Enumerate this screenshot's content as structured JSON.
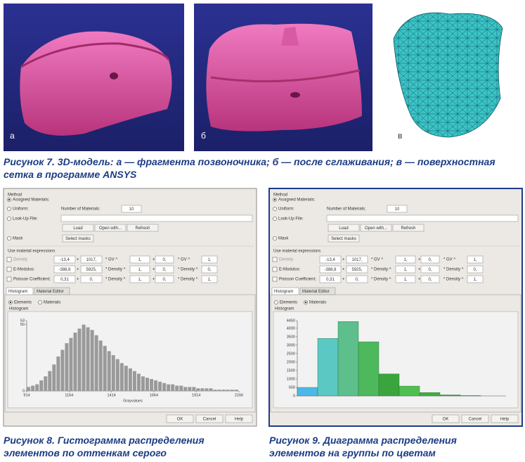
{
  "images": [
    {
      "label": "а"
    },
    {
      "label": "б"
    },
    {
      "label": "в"
    }
  ],
  "captions": [
    "Рисунок 7. 3D-модель: а — фрагмента позвоночника; б — после сглаживания; в — поверхностная сетка в программе ANSYS",
    "Рисунок 8. Гистограмма распределения элементов по оттенкам серого",
    "Рисунок 9. Диаграмма распределения элементов на группы по цветам"
  ],
  "dialogs": [
    {
      "method": "Method",
      "method_selected": 0,
      "options": [
        "Assigned Materials:",
        "Uniform:",
        "Look-Up File:",
        "Mask"
      ],
      "num_label": "Number of Materials:",
      "num_value": "10",
      "file_buttons": [
        "Load",
        "Open with...",
        "Refresh"
      ],
      "select_masks": "Select masks",
      "use_expr": "Use material expressions",
      "rows": [
        {
          "label": "Density",
          "cells": [
            "-13,4",
            "+",
            "1017,",
            "* GV ^",
            "1,",
            "+",
            "0,",
            "* GV ^",
            "1,"
          ]
        },
        {
          "label": "E-Modulus:",
          "cells": [
            "-388,8",
            "+",
            "5925,",
            "* Density ^",
            "1,",
            "+",
            "0,",
            "* Density ^",
            "0,"
          ]
        },
        {
          "label": "Poisson Coefficient:",
          "cells": [
            "0,31",
            "+",
            "0,",
            "* Density ^",
            "1,",
            "+",
            "0,",
            "* Density ^",
            "1,"
          ]
        }
      ],
      "tabs": [
        "Histogram",
        "Material Editor"
      ],
      "views": [
        "Elements",
        "Materials"
      ],
      "view_selected": 0,
      "hist_label": "Histogram",
      "buttons": [
        "OK",
        "Cancel",
        "Help"
      ],
      "chart": {
        "type": "bar",
        "color": "#9a9a9a",
        "xlabel": "Grayvalues",
        "x": [
          925,
          950,
          975,
          1000,
          1025,
          1050,
          1075,
          1100,
          1125,
          1150,
          1175,
          1200,
          1225,
          1250,
          1275,
          1300,
          1325,
          1350,
          1375,
          1400,
          1425,
          1450,
          1475,
          1500,
          1525,
          1550,
          1575,
          1600,
          1625,
          1650,
          1675,
          1700,
          1725,
          1750,
          1775,
          1800,
          1825,
          1850,
          1875,
          1900,
          1925,
          1950,
          1975,
          2000,
          2025,
          2050,
          2075,
          2100,
          2125,
          2150
        ],
        "values": [
          3,
          4,
          5,
          8,
          11,
          15,
          20,
          26,
          31,
          36,
          40,
          44,
          47,
          50,
          48,
          46,
          42,
          38,
          34,
          30,
          27,
          24,
          21,
          19,
          17,
          15,
          13,
          11,
          10,
          9,
          8,
          7,
          6,
          5,
          5,
          4,
          4,
          3,
          3,
          3,
          2,
          2,
          2,
          2,
          1,
          1,
          1,
          1,
          1,
          1
        ],
        "xlim": [
          914,
          2166
        ],
        "xticks": [
          914,
          1164,
          1414,
          1664,
          1914,
          2166
        ],
        "ylim": [
          0,
          53
        ],
        "yticks": [
          0,
          50,
          53
        ]
      }
    },
    {
      "method": "Method",
      "method_selected": 0,
      "options": [
        "Assigned Materials:",
        "Uniform:",
        "Look-Up File:",
        "Mask"
      ],
      "num_label": "Number of Materials:",
      "num_value": "10",
      "file_buttons": [
        "Load",
        "Open with...",
        "Refresh"
      ],
      "select_masks": "Select masks",
      "use_expr": "Use material expressions",
      "rows": [
        {
          "label": "Density",
          "cells": [
            "-13,4",
            "+",
            "1017,",
            "* GV ^",
            "1,",
            "+",
            "0,",
            "* GV ^",
            "1,"
          ]
        },
        {
          "label": "E-Modulus:",
          "cells": [
            "-388,8",
            "+",
            "5925,",
            "* Density ^",
            "1,",
            "+",
            "0,",
            "* Density ^",
            "0,"
          ]
        },
        {
          "label": "Poisson Coefficient:",
          "cells": [
            "0,31",
            "+",
            "0,",
            "* Density ^",
            "1,",
            "+",
            "0,",
            "* Density ^",
            "1,"
          ]
        }
      ],
      "tabs": [
        "Histogram",
        "Material Editor"
      ],
      "views": [
        "Elements",
        "Materials"
      ],
      "view_selected": 1,
      "hist_label": "Histogram",
      "buttons": [
        "OK",
        "Cancel",
        "Help"
      ],
      "chart": {
        "type": "bar",
        "values": [
          500,
          3400,
          4400,
          3200,
          1300,
          580,
          200,
          60,
          20
        ],
        "colors": [
          "#4cb8e8",
          "#5cc8c4",
          "#5cbf8c",
          "#4db85c",
          "#3aa53c",
          "#4fc04f",
          "#3faf3f",
          "#3aa83a",
          "#3aa83a"
        ],
        "ylim": [
          0,
          4450
        ],
        "yticks": [
          0,
          500,
          1000,
          1500,
          2000,
          2500,
          3000,
          3500,
          4000,
          4450
        ]
      }
    }
  ]
}
